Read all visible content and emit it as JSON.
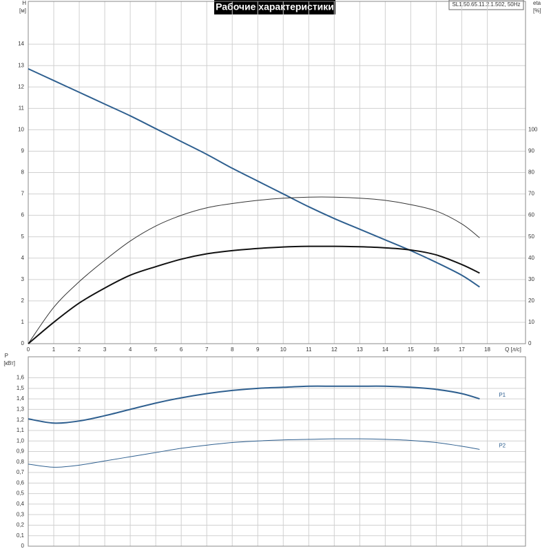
{
  "chart_data": [
    {
      "type": "line",
      "title": "Рабочие характеристики",
      "annotation": "SL1.50.65.11.2.1.502, 50Hz",
      "ylabel": "H",
      "yunit": "[м]",
      "y2label": "eta",
      "y2unit": "[%]",
      "xlabel": "Q [л/с]",
      "x": [
        0,
        1,
        2,
        3,
        4,
        5,
        6,
        7,
        8,
        9,
        10,
        11,
        12,
        13,
        14,
        15,
        16,
        17,
        17.7
      ],
      "xlim": [
        0,
        19.5
      ],
      "xticks": [
        0,
        1,
        2,
        3,
        4,
        5,
        6,
        7,
        8,
        9,
        10,
        11,
        12,
        13,
        14,
        15,
        16,
        17,
        18
      ],
      "ylim": [
        0,
        16
      ],
      "yticks": [
        0,
        1,
        2,
        3,
        4,
        5,
        6,
        7,
        8,
        9,
        10,
        11,
        12,
        13,
        14
      ],
      "y2lim": [
        0,
        160
      ],
      "y2ticks": [
        0,
        10,
        20,
        30,
        40,
        50,
        60,
        70,
        80,
        90,
        100
      ],
      "grid": true,
      "series": [
        {
          "color": "#2e5f8f",
          "width": 2,
          "values": [
            12.85,
            12.3,
            11.75,
            11.2,
            10.65,
            10.05,
            9.45,
            8.85,
            8.2,
            7.6,
            7.0,
            6.4,
            5.85,
            5.35,
            4.85,
            4.35,
            3.8,
            3.2,
            2.65
          ]
        },
        {
          "color": "#333333",
          "width": 1,
          "axis": "y2",
          "values": [
            0,
            17,
            29,
            39,
            48,
            55,
            60,
            63.5,
            65.5,
            67,
            68,
            68.5,
            68.5,
            68,
            67,
            65,
            62,
            56,
            49.5
          ]
        },
        {
          "color": "#111111",
          "width": 2,
          "axis": "y2",
          "values": [
            0,
            10,
            19,
            26,
            32,
            36,
            39.5,
            42,
            43.5,
            44.5,
            45.2,
            45.5,
            45.5,
            45.3,
            44.8,
            43.8,
            41.5,
            37,
            33
          ]
        }
      ]
    },
    {
      "type": "line",
      "ylabel": "P",
      "yunit": "[кВт]",
      "x": [
        0,
        1,
        2,
        3,
        4,
        5,
        6,
        7,
        8,
        9,
        10,
        11,
        12,
        13,
        14,
        15,
        16,
        17,
        17.7
      ],
      "xlim": [
        0,
        19.5
      ],
      "xticks": [
        0,
        1,
        2,
        3,
        4,
        5,
        6,
        7,
        8,
        9,
        10,
        11,
        12,
        13,
        14,
        15,
        16,
        17,
        18
      ],
      "ylim": [
        0,
        1.8
      ],
      "yticks": [
        0,
        {
          "value": 0.1,
          "label": "0,1"
        },
        {
          "value": 0.2,
          "label": "0,2"
        },
        {
          "value": 0.3,
          "label": "0,3"
        },
        {
          "value": 0.4,
          "label": "0,4"
        },
        {
          "value": 0.5,
          "label": "0,5"
        },
        {
          "value": 0.6,
          "label": "0,6"
        },
        {
          "value": 0.7,
          "label": "0,7"
        },
        {
          "value": 0.8,
          "label": "0,8"
        },
        {
          "value": 0.9,
          "label": "0,9"
        },
        {
          "value": 1.0,
          "label": "1,0"
        },
        {
          "value": 1.1,
          "label": "1,1"
        },
        {
          "value": 1.2,
          "label": "1,2"
        },
        {
          "value": 1.3,
          "label": "1,3"
        },
        {
          "value": 1.4,
          "label": "1,4"
        },
        {
          "value": 1.5,
          "label": "1,5"
        },
        {
          "value": 1.6,
          "label": "1,6"
        }
      ],
      "grid": true,
      "series": [
        {
          "name": "P1",
          "color": "#2e5f8f",
          "width": 2,
          "values": [
            1.21,
            1.17,
            1.19,
            1.24,
            1.3,
            1.36,
            1.41,
            1.45,
            1.48,
            1.5,
            1.51,
            1.52,
            1.52,
            1.52,
            1.52,
            1.51,
            1.49,
            1.45,
            1.4
          ]
        },
        {
          "name": "P2",
          "color": "#2e5f8f",
          "width": 1,
          "values": [
            0.78,
            0.75,
            0.77,
            0.81,
            0.85,
            0.89,
            0.93,
            0.96,
            0.985,
            1.0,
            1.01,
            1.015,
            1.02,
            1.02,
            1.015,
            1.005,
            0.985,
            0.95,
            0.92
          ]
        }
      ]
    }
  ]
}
